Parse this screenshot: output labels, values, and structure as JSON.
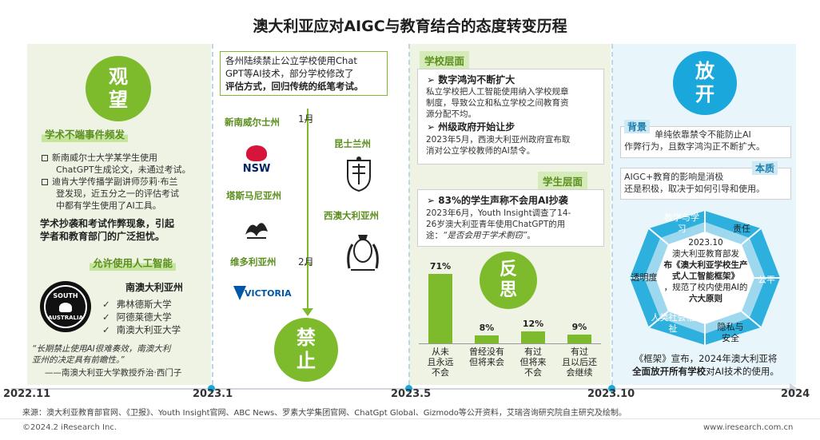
{
  "title": "澳大利亚应对AIGC与教育结合的态度转变历程",
  "stage1": {
    "circle": [
      "观",
      "望"
    ],
    "label1": "学术不端事件频发",
    "bullets": [
      [
        "新南威尔士大学某学生使用",
        "ChatGPT生成论文，未通过考试。"
      ],
      [
        "迪肯大学传播学副讲师莎莉·布兰",
        "登发现，近五分之一的评估考试",
        "中都有学生使用了AI工具。"
      ]
    ],
    "conclusion": [
      "学术抄袭和考试作弊现象，引起",
      "学者和教育部门的广泛担忧。"
    ],
    "label2": "允许使用人工智能",
    "state": "南澳大利亚州",
    "unis": [
      "弗林德斯大学",
      "阿德莱德大学",
      "南澳大利亚大学"
    ],
    "checkmark": "✓",
    "logo_text": [
      "SOUTH",
      "AUSTRALIA"
    ],
    "quote": [
      "“长期禁止使用AI很难奏效，南澳大利",
      "亚州的决定具有前瞻性。”"
    ],
    "quote_by": "——南澳大利亚大学教授乔治·西门子"
  },
  "stage2": {
    "box": [
      "各州陆续禁止公立学校使用Chat",
      "GPT等AI技术，部分学校修改了",
      "评估方式，回归传统的纸笔考试。"
    ],
    "states": {
      "nsw": "新南威尔士州",
      "qld": "昆士兰州",
      "tas": "塔斯马尼亚州",
      "wa": "西澳大利亚州",
      "vic": "维多利亚州"
    },
    "logos": {
      "nsw": "NSW",
      "vic": "VICTORIA"
    },
    "month1": "1月",
    "month2": "2月",
    "circle": [
      "禁",
      "止"
    ]
  },
  "stage3": {
    "school_label": "学校层面",
    "h1": "数字鸿沟不断扩大",
    "p1": [
      "私立学校把人工智能使用纳入学校规章",
      "制度，导致公立和私立学校之间教育资",
      "源分配不均。"
    ],
    "h2": "州级政府开始让步",
    "p2": [
      "2023年5月，西澳大利亚州政府宣布取",
      "消对公立学校教师的AI禁令。"
    ],
    "student_label": "学生层面",
    "h3": "83%的学生声称不会用AI抄袭",
    "p3": [
      "2023年6月，Youth Insight调查了14-",
      "26岁澳大利亚青年使用ChatGPT的用"
    ],
    "p3_lead": "途：",
    "p3_quote": "“是否会用于学术剽窃”",
    "p3_end": "。",
    "arrow": "➢",
    "circle": [
      "反",
      "思"
    ]
  },
  "chart_data": {
    "type": "bar",
    "categories": [
      "从未且永远不会",
      "曾经没有但将来会",
      "有过但将来不会",
      "有过且以后还会继续"
    ],
    "category_lines": [
      [
        "从未",
        "且永远",
        "不会"
      ],
      [
        "曾经没有",
        "但将来会"
      ],
      [
        "有过",
        "但将来",
        "不会"
      ],
      [
        "有过",
        "且以后还",
        "会继续"
      ]
    ],
    "values": [
      71,
      8,
      12,
      9
    ],
    "labels": [
      "71%",
      "8%",
      "12%",
      "9%"
    ],
    "title": "",
    "xlabel": "",
    "ylabel": "",
    "ylim": [
      0,
      75
    ],
    "color": "#7dbb2d"
  },
  "stage4": {
    "circle": [
      "放",
      "开"
    ],
    "bg_label": "背景",
    "bg_text": [
      "单纯依靠禁令不能防止AI",
      "作弊行为，且数字鸿沟正不断扩大。"
    ],
    "ess_label": "本质",
    "ess_text": [
      "AIGC+教育的影响是消极",
      "还是积极，取决于如何引导和使用。"
    ],
    "hex": [
      "教学与学习",
      "责任",
      "公平",
      "隐私与安全",
      "人类社会福祉",
      "透明度"
    ],
    "center": {
      "date": "2023.10",
      "line1": "澳大利亚教育部发",
      "title": "布《澳大利亚学校生产式人工智能框架》",
      "line3": "，规范了校内使用AI的",
      "key": "六大原则"
    },
    "bottom": [
      "《框架》宣布，2024年澳大利亚将",
      "全面放开所有学校",
      "对AI技术的使用。"
    ]
  },
  "timeline": [
    "2022.11",
    "2023.1",
    "2023.5",
    "2023.10",
    "2024"
  ],
  "source": "来源：澳大利亚教育部官网、《卫报》、Youth Insight官网、ABC News、罗素大学集团官网、ChatGpt Global、Gizmodo等公开资料，艾瑞咨询研究院自主研究及绘制。",
  "copyright": "©2024.2 iResearch Inc.",
  "website": "www.iresearch.com.cn",
  "colors": {
    "green": "#7dbb2d",
    "blue": "#1aa8dc",
    "dark_green": "#5b8f1d"
  }
}
